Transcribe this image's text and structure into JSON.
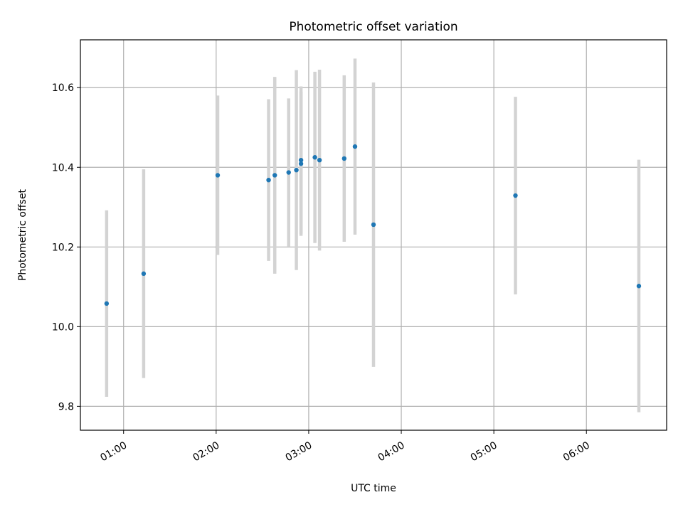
{
  "chart_data": {
    "type": "scatter",
    "title": "Photometric offset variation",
    "xlabel": "UTC time",
    "ylabel": "Photometric offset",
    "x_axis_type": "time",
    "xlim": [
      "00:32",
      "06:52"
    ],
    "ylim": [
      9.74,
      10.72
    ],
    "x_ticks": [
      "01:00",
      "02:00",
      "03:00",
      "04:00",
      "05:00",
      "06:00"
    ],
    "y_ticks": [
      9.8,
      10.0,
      10.2,
      10.4,
      10.6
    ],
    "y_tick_labels": [
      "9.8",
      "10.0",
      "10.2",
      "10.4",
      "10.6"
    ],
    "x_tick_label_rotation": "30 degrees",
    "grid": true,
    "legend": "none",
    "colors": {
      "points": "#1f77b4",
      "errorbars": "#d3d3d3",
      "grid": "#b0b0b0"
    },
    "series": [
      {
        "x": [
          "00:49",
          "01:13",
          "02:01",
          "02:34",
          "02:38",
          "02:47",
          "02:52",
          "02:55",
          "02:55",
          "03:04",
          "03:07",
          "03:23",
          "03:30",
          "03:42",
          "05:14",
          "06:34"
        ],
        "y": [
          10.058,
          10.133,
          10.38,
          10.368,
          10.38,
          10.387,
          10.393,
          10.418,
          10.409,
          10.425,
          10.418,
          10.422,
          10.452,
          10.256,
          10.329,
          10.102
        ],
        "yerr": [
          0.234,
          0.262,
          0.2,
          0.203,
          0.247,
          0.186,
          0.251,
          0.185,
          0.181,
          0.215,
          0.227,
          0.209,
          0.221,
          0.357,
          0.248,
          0.317
        ]
      }
    ]
  }
}
